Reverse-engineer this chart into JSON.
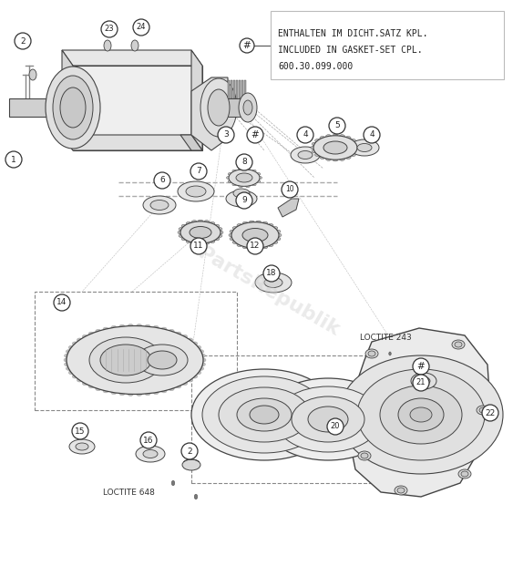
{
  "background_color": "#ffffff",
  "line_color": "#444444",
  "circle_edge": "#333333",
  "parts_label_color": "#222222",
  "watermark": "PartsRepublik",
  "legend_lines": [
    "ENTHALTEN IM DICHT.SATZ KPL.",
    "INCLUDED IN GASKET-SET CPL.",
    "600.30.099.000"
  ],
  "loctite_648": "LOCTITE 648",
  "loctite_243": "LOCTITE 243"
}
